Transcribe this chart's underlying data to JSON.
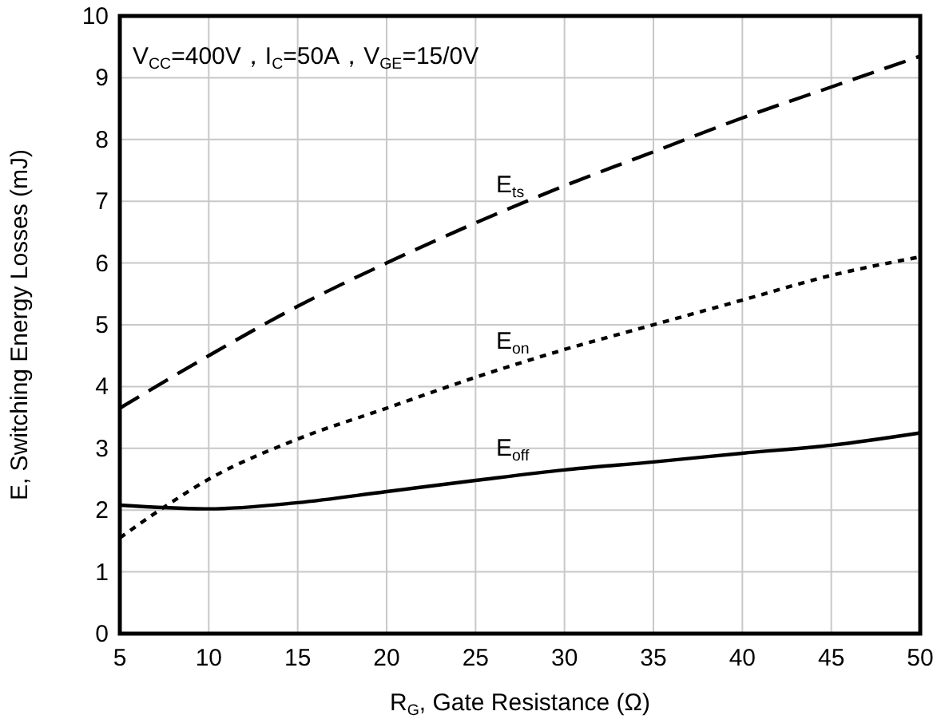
{
  "chart_data": {
    "type": "line",
    "xlabel": "R$_{G}$, Gate Resistance (Ω)",
    "ylabel": "E, Switching Energy Losses (mJ)",
    "annotations": [
      "V$_{CC}$=400V，I$_{C}$=50A，V$_{GE}$=15/0V"
    ],
    "xlim": [
      5,
      50
    ],
    "xticks": [
      5,
      10,
      15,
      20,
      25,
      30,
      35,
      40,
      45,
      50
    ],
    "ylim": [
      0,
      10
    ],
    "yticks": [
      0,
      1,
      2,
      3,
      4,
      5,
      6,
      7,
      8,
      9,
      10
    ],
    "grid": true,
    "marker": "none",
    "series": [
      {
        "name": "E$_{ts}$",
        "color": "#000000",
        "line_style": "dashed",
        "x": [
          5,
          10,
          15,
          20,
          25,
          30,
          35,
          40,
          45,
          50
        ],
        "values": [
          3.65,
          4.5,
          5.3,
          6.0,
          6.65,
          7.25,
          7.8,
          8.35,
          8.85,
          9.35
        ]
      },
      {
        "name": "E$_{on}$",
        "color": "#000000",
        "line_style": "dotted",
        "x": [
          5,
          7.5,
          10,
          15,
          20,
          25,
          30,
          35,
          40,
          45,
          50
        ],
        "values": [
          1.55,
          2.05,
          2.5,
          3.15,
          3.65,
          4.15,
          4.6,
          5.0,
          5.4,
          5.8,
          6.1
        ]
      },
      {
        "name": "E$_{off}$",
        "color": "#000000",
        "line_style": "solid",
        "x": [
          5,
          10,
          15,
          20,
          25,
          30,
          35,
          40,
          45,
          50
        ],
        "values": [
          2.08,
          2.02,
          2.12,
          2.3,
          2.48,
          2.65,
          2.78,
          2.92,
          3.05,
          3.25
        ]
      }
    ]
  }
}
